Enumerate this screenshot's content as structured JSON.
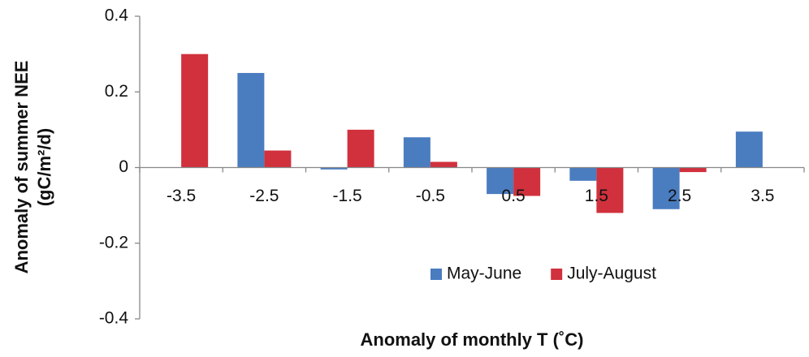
{
  "chart_data": {
    "type": "bar",
    "ylabel": [
      "Anomaly of summer NEE",
      "(gC/m²/d)"
    ],
    "xlabel": "Anomaly of monthly T (˚C)",
    "categories": [
      "-3.5",
      "-2.5",
      "-1.5",
      "-0.5",
      "0.5",
      "1.5",
      "2.5",
      "3.5"
    ],
    "series": [
      {
        "name": "May-June",
        "color": "#4a7cc0",
        "values": [
          0,
          0.25,
          -0.005,
          0.08,
          -0.07,
          -0.035,
          -0.11,
          0.095
        ]
      },
      {
        "name": "July-August",
        "color": "#d0313d",
        "values": [
          0.3,
          0.045,
          0.1,
          0.015,
          -0.075,
          -0.12,
          -0.012,
          0
        ]
      }
    ],
    "ylim": [
      -0.4,
      0.4
    ],
    "yticks": [
      -0.4,
      -0.2,
      0,
      0.2,
      0.4
    ],
    "grid": false,
    "legend": "lower center"
  }
}
